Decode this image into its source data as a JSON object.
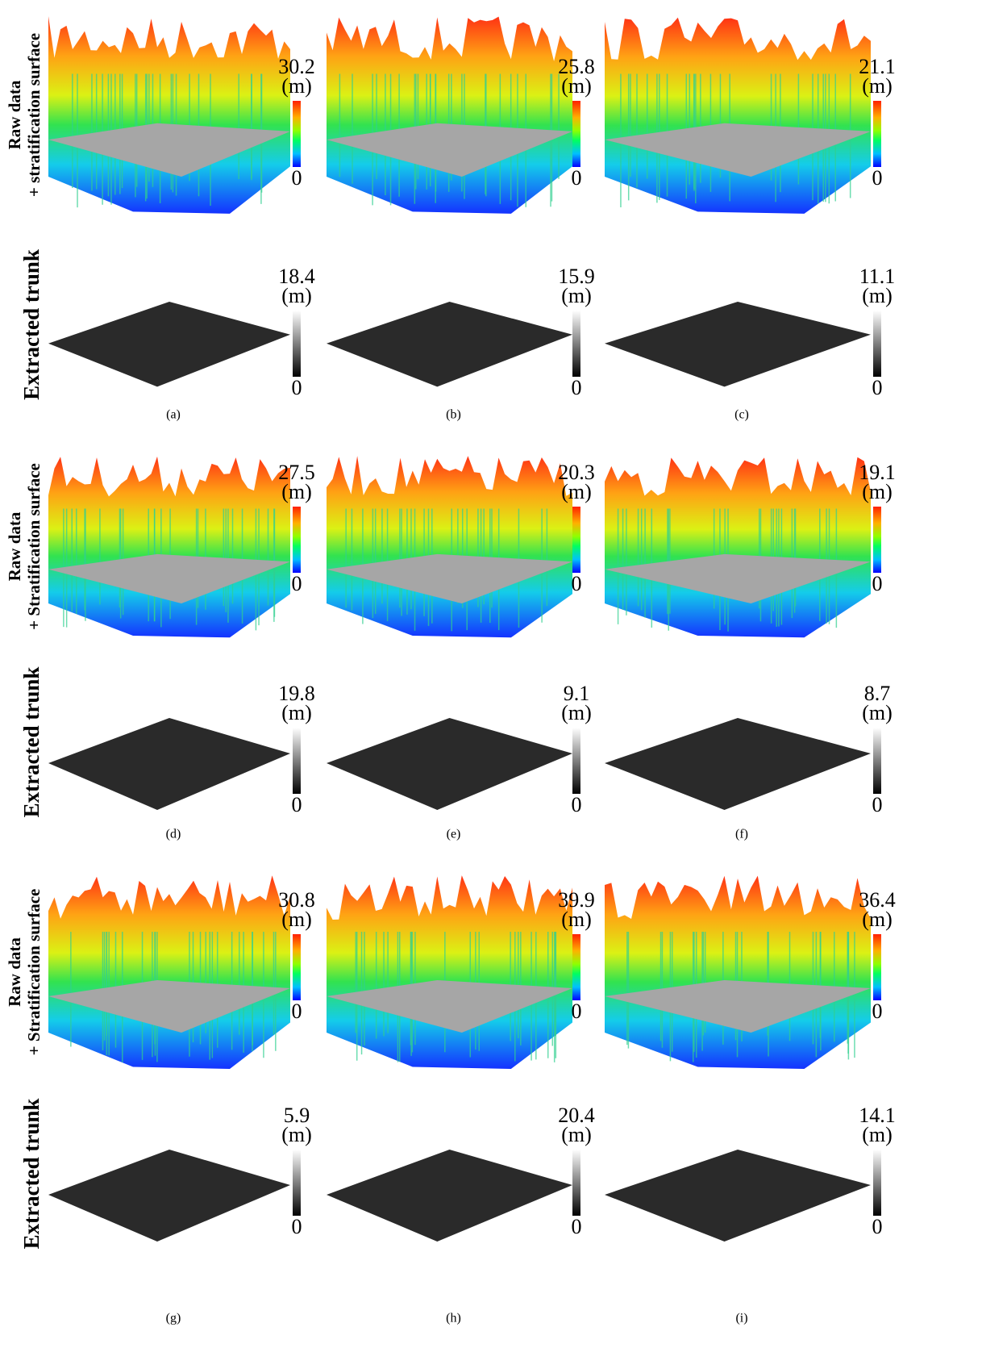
{
  "unit": "(m)",
  "min": 0,
  "groups": [
    {
      "raw_label": [
        "Raw data",
        "+ stratification surface"
      ],
      "trunk_label": "Extracted trunk",
      "panels": [
        {
          "label": "(a)",
          "raw_max": 30.2,
          "trunk_max": 18.4
        },
        {
          "label": "(b)",
          "raw_max": 25.8,
          "trunk_max": 15.9
        },
        {
          "label": "(c)",
          "raw_max": 21.1,
          "trunk_max": 11.1
        }
      ]
    },
    {
      "raw_label": [
        "Raw data",
        "+ Stratification surface"
      ],
      "trunk_label": "Extracted trunk",
      "panels": [
        {
          "label": "(d)",
          "raw_max": 27.5,
          "trunk_max": 19.8
        },
        {
          "label": "(e)",
          "raw_max": 20.3,
          "trunk_max": 9.1
        },
        {
          "label": "(f)",
          "raw_max": 19.1,
          "trunk_max": 8.7
        }
      ]
    },
    {
      "raw_label": [
        "Raw data",
        "+ Stratification surface"
      ],
      "trunk_label": "Extracted trunk",
      "panels": [
        {
          "label": "(g)",
          "raw_max": 30.8,
          "trunk_max": 5.9
        },
        {
          "label": "(h)",
          "raw_max": 39.9,
          "trunk_max": 20.4
        },
        {
          "label": "(i)",
          "raw_max": 36.4,
          "trunk_max": 14.1
        }
      ]
    }
  ]
}
